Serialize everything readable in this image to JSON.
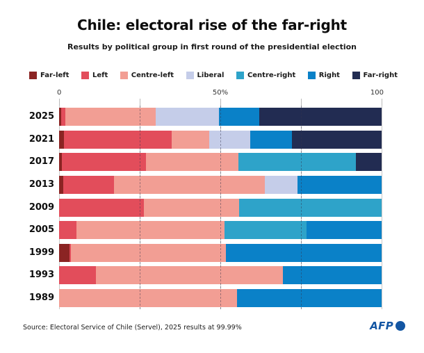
{
  "header": {
    "title": "Chile: electoral rise of the far-right",
    "subtitle": "Results by political group in first round of the presidential election"
  },
  "legend": {
    "items": [
      {
        "label": "Far-left",
        "color": "#8b2423"
      },
      {
        "label": "Left",
        "color": "#e24d5b"
      },
      {
        "label": "Centre-left",
        "color": "#f29e94"
      },
      {
        "label": "Liberal",
        "color": "#c5cde9"
      },
      {
        "label": "Centre-right",
        "color": "#2ea3c9"
      },
      {
        "label": "Right",
        "color": "#0a81c8"
      },
      {
        "label": "Far-right",
        "color": "#222c52"
      }
    ]
  },
  "axis": {
    "tick_labels": {
      "left": "0",
      "middle": "50%",
      "right": "100"
    },
    "tick_positions_percent": [
      0,
      25,
      50,
      75,
      100
    ],
    "dashed_guides_percent": [
      25,
      50,
      75
    ]
  },
  "chart_data": {
    "type": "bar",
    "stacked": true,
    "orientation": "horizontal",
    "title": "Chile: electoral rise of the far-right",
    "subtitle": "Results by political group in first round of the presidential election",
    "xlabel": "",
    "ylabel": "",
    "xlim": [
      0,
      100
    ],
    "grid": true,
    "legend_position": "top",
    "categories": [
      "2025",
      "2021",
      "2017",
      "2013",
      "2009",
      "2005",
      "1999",
      "1993",
      "1989"
    ],
    "series": [
      {
        "name": "Far-left",
        "color": "#8b2423",
        "values": [
          0.6,
          1.5,
          0.9,
          1.3,
          0,
          0,
          3.2,
          0,
          0
        ]
      },
      {
        "name": "Left",
        "color": "#e24d5b",
        "values": [
          1.3,
          33.4,
          26.0,
          15.8,
          26.3,
          5.4,
          0.5,
          11.4,
          0
        ]
      },
      {
        "name": "Centre-left",
        "color": "#f29e94",
        "values": [
          28.1,
          11.6,
          28.6,
          46.7,
          29.6,
          46.0,
          48.0,
          58.0,
          55.2
        ]
      },
      {
        "name": "Liberal",
        "color": "#c5cde9",
        "values": [
          19.7,
          12.8,
          0,
          10.1,
          0,
          0,
          0,
          0,
          0
        ]
      },
      {
        "name": "Centre-right",
        "color": "#2ea3c9",
        "values": [
          0,
          0,
          36.6,
          0,
          44.1,
          25.4,
          0,
          0,
          0
        ]
      },
      {
        "name": "Right",
        "color": "#0a81c8",
        "values": [
          12.5,
          12.8,
          0,
          26.1,
          0,
          23.2,
          48.3,
          30.6,
          44.8
        ]
      },
      {
        "name": "Far-right",
        "color": "#222c52",
        "values": [
          37.9,
          27.9,
          7.9,
          0,
          0,
          0,
          0,
          0,
          0
        ]
      }
    ]
  },
  "footer": {
    "source": "Source: Electoral Service of Chile (Servel), 2025 results at 99.99%",
    "logo_text": "AFP",
    "logo_color": "#1356a3"
  }
}
